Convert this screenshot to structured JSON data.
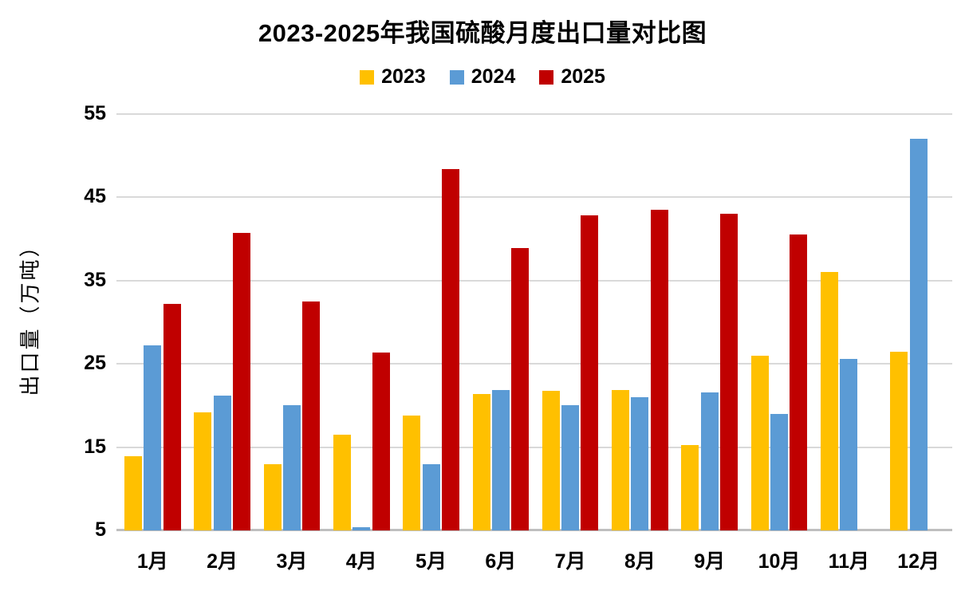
{
  "chart_data": {
    "type": "bar",
    "title": "2023-2025年我国硫酸月度出口量对比图",
    "categories": [
      "1月",
      "2月",
      "3月",
      "4月",
      "5月",
      "6月",
      "7月",
      "8月",
      "9月",
      "10月",
      "11月",
      "12月"
    ],
    "series": [
      {
        "name": "2023",
        "color": "#FFC000",
        "values": [
          13.9,
          19.2,
          13.0,
          16.5,
          18.8,
          21.4,
          21.8,
          21.9,
          15.3,
          26.0,
          36.0,
          26.5
        ]
      },
      {
        "name": "2024",
        "color": "#5B9BD5",
        "values": [
          27.2,
          21.2,
          20.0,
          5.4,
          13.0,
          21.9,
          20.0,
          21.0,
          21.6,
          19.0,
          25.6,
          52.0
        ]
      },
      {
        "name": "2025",
        "color": "#C00000",
        "values": [
          32.2,
          40.7,
          32.5,
          26.4,
          48.4,
          38.9,
          42.8,
          43.5,
          43.0,
          40.5,
          null,
          null
        ]
      }
    ],
    "xlabel": "",
    "ylabel": "出口量（万吨）",
    "ylim": [
      5,
      55
    ],
    "yticks": [
      5,
      15,
      25,
      35,
      45,
      55
    ],
    "grid": true,
    "legend_position": "top",
    "colors": {
      "gridline": "#D9D9D9",
      "axis_line": "#BFBFBF",
      "text": "#000000",
      "background": "#FFFFFF"
    }
  }
}
